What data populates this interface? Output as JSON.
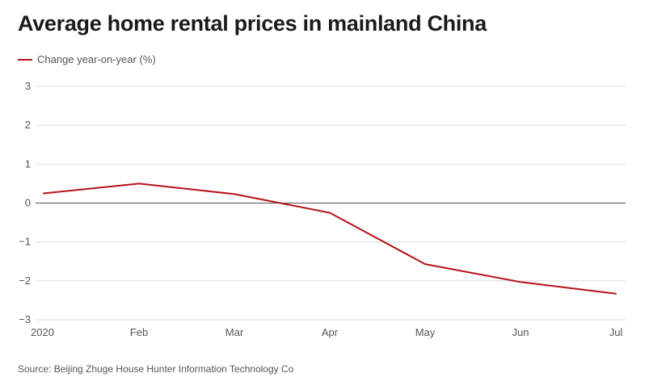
{
  "chart_data": {
    "type": "line",
    "title": "Average home rental prices in mainland China",
    "categories": [
      "2020",
      "Feb",
      "Mar",
      "Apr",
      "May",
      "Jun",
      "Jul"
    ],
    "series": [
      {
        "name": "Change year-on-year (%)",
        "values": [
          0.25,
          0.5,
          0.23,
          -0.25,
          -1.57,
          -2.03,
          -2.33
        ]
      }
    ],
    "yticks": [
      "3",
      "2",
      "1",
      "0",
      "−1",
      "−2",
      "−3"
    ],
    "ytick_values": [
      3,
      2,
      1,
      0,
      -1,
      -2,
      -3
    ],
    "ylim": [
      -3,
      3
    ],
    "xlabel": "",
    "ylabel": "",
    "grid": true,
    "legend_position": "top-left",
    "source": "Source: Beijing Zhuge House Hunter Information Technology Co"
  },
  "colors": {
    "series": "#b5121b",
    "grid": "#dcdcdc",
    "zero": "#555555",
    "text": "#555555",
    "title": "#1a1a1a"
  }
}
